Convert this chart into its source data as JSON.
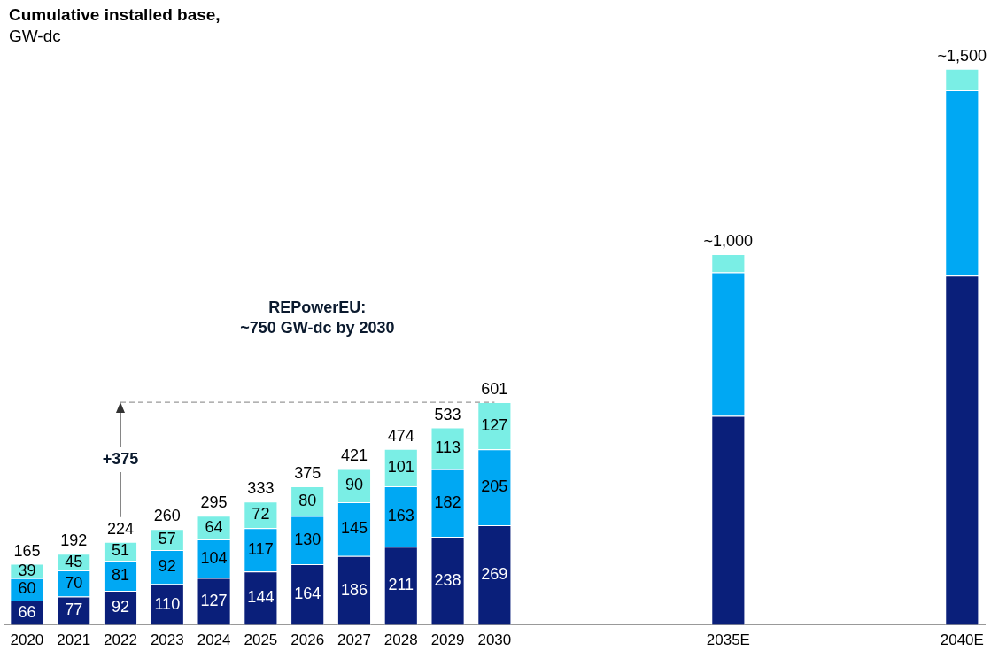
{
  "chart_data": {
    "type": "bar",
    "title": "Cumulative installed base,",
    "subtitle": "GW-dc",
    "stacked": true,
    "categories": [
      "2020",
      "2021",
      "2022",
      "2023",
      "2024",
      "2025",
      "2026",
      "2027",
      "2028",
      "2029",
      "2030",
      null,
      null,
      null,
      null,
      "2035E",
      null,
      null,
      null,
      null,
      "2040E"
    ],
    "series": [
      {
        "color": "#0a1f7a",
        "values": [
          66,
          77,
          92,
          110,
          127,
          144,
          164,
          186,
          211,
          238,
          269,
          null,
          null,
          null,
          null,
          564,
          null,
          null,
          null,
          null,
          942
        ],
        "value_labels": [
          "66",
          "77",
          "92",
          "110",
          "127",
          "144",
          "164",
          "186",
          "211",
          "238",
          "269",
          null,
          null,
          null,
          null,
          null,
          null,
          null,
          null,
          null,
          null
        ]
      },
      {
        "color": "#00a8f3",
        "values": [
          60,
          70,
          81,
          92,
          104,
          117,
          130,
          145,
          163,
          182,
          205,
          null,
          null,
          null,
          null,
          387,
          null,
          null,
          null,
          null,
          500
        ],
        "value_labels": [
          "60",
          "70",
          "81",
          "92",
          "104",
          "117",
          "130",
          "145",
          "163",
          "182",
          "205",
          null,
          null,
          null,
          null,
          null,
          null,
          null,
          null,
          null,
          null
        ]
      },
      {
        "color": "#7aeee5",
        "values": [
          39,
          45,
          51,
          57,
          64,
          72,
          80,
          90,
          101,
          113,
          127,
          null,
          null,
          null,
          null,
          49,
          null,
          null,
          null,
          null,
          58
        ],
        "value_labels": [
          "39",
          "45",
          "51",
          "57",
          "64",
          "72",
          "80",
          "90",
          "101",
          "113",
          "127",
          null,
          null,
          null,
          null,
          null,
          null,
          null,
          null,
          null,
          null
        ]
      }
    ],
    "totals": [
      "165",
      "192",
      "224",
      "260",
      "295",
      "333",
      "375",
      "421",
      "474",
      "533",
      "601",
      null,
      null,
      null,
      null,
      "~1,000",
      null,
      null,
      null,
      null,
      "~1,500"
    ],
    "ref_lines": [
      {
        "axis": "y",
        "value": 601,
        "color": "#999999",
        "line_style": "dashed"
      }
    ],
    "annotations": [
      {
        "text": "+375",
        "x": "2022",
        "y": 601
      },
      "REPowerEU:\n~750 GW-dc by 2030"
    ]
  }
}
